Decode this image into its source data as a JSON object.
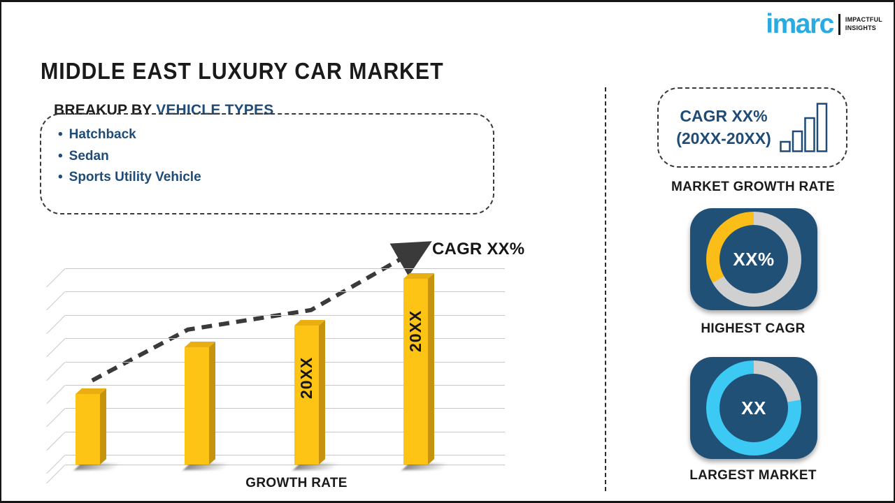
{
  "header": {
    "title": "MIDDLE EAST LUXURY CAR MARKET"
  },
  "logo": {
    "brand": "imarc",
    "tagline1": "IMPACTFUL",
    "tagline2": "INSIGHTS"
  },
  "breakup": {
    "heading_prefix": "BREAKUP BY ",
    "heading_highlight": "VEHICLE TYPES",
    "items": [
      "Hatchback",
      "Sedan",
      "Sports Utility Vehicle"
    ]
  },
  "chart_data": {
    "type": "bar",
    "title": "",
    "xlabel": "GROWTH RATE",
    "ylabel": "",
    "categories": [
      "",
      "",
      "20XX",
      "20XX"
    ],
    "values": [
      36,
      60,
      71,
      95
    ],
    "ylim": [
      0,
      100
    ],
    "grid": true,
    "legend": "none",
    "trend_label": "CAGR XX%",
    "trend": {
      "x_frac": [
        0.099,
        0.308,
        0.577,
        0.817
      ],
      "y_values": [
        43,
        69,
        79,
        111
      ]
    },
    "bar_color": "#FDC416"
  },
  "right_panel": {
    "growth_box": {
      "line1": "CAGR XX%",
      "line2": "(20XX-20XX)"
    },
    "growth_label": "MARKET GROWTH RATE",
    "highest_cagr": {
      "value": "XX%",
      "label": "HIGHEST CAGR",
      "ring": [
        {
          "color": "#D0D0D0",
          "from": 0,
          "to": 240
        },
        {
          "color": "#FBBD18",
          "from": 240,
          "to": 360
        }
      ]
    },
    "largest_market": {
      "value": "XX",
      "label": "LARGEST MARKET",
      "ring": [
        {
          "color": "#CFCFCF",
          "from": 0,
          "to": 80
        },
        {
          "color": "#3CC9F4",
          "from": 80,
          "to": 360
        }
      ]
    }
  },
  "colors": {
    "accent_blue": "#1F4B77",
    "card_blue": "#215077",
    "bar_yellow": "#FDC416",
    "donut_yellow": "#FBBD18",
    "donut_cyan": "#3CC9F4",
    "ring_gray": "#D0D0D0",
    "logo_cyan": "#29ABE2",
    "text_dark": "#1A1A1A"
  }
}
